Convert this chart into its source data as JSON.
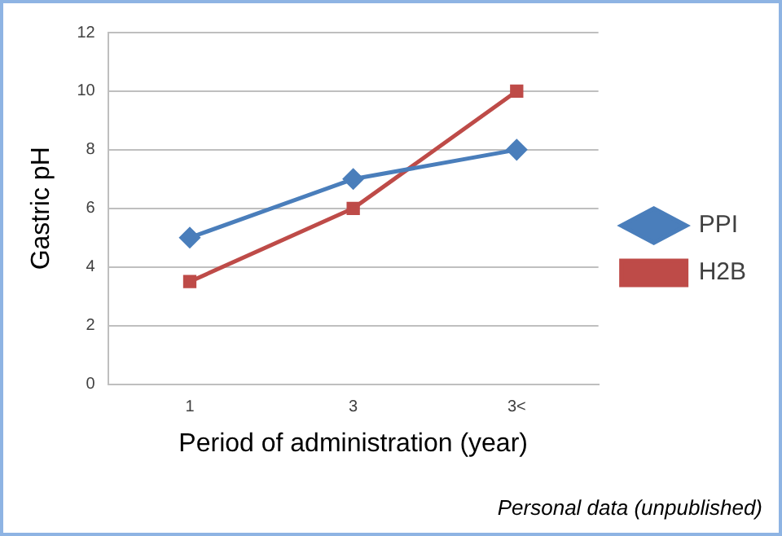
{
  "chart_data": {
    "type": "line",
    "xlabel": "Period of administration (year)",
    "ylabel": "Gastric pH",
    "categories": [
      "1",
      "3",
      "3<"
    ],
    "series": [
      {
        "name": "PPI",
        "color": "#4a7ebb",
        "values": [
          5,
          7,
          8
        ],
        "marker": "diamond"
      },
      {
        "name": "H2B",
        "color": "#be4b48",
        "values": [
          3.5,
          6,
          10
        ],
        "marker": "square"
      }
    ],
    "ylim": [
      0,
      12
    ],
    "yticks": [
      0,
      2,
      4,
      6,
      8,
      10,
      12
    ],
    "grid": "y",
    "legend": "right",
    "line_style": "solid",
    "annotations": [
      "Personal data (unpublished)"
    ]
  }
}
